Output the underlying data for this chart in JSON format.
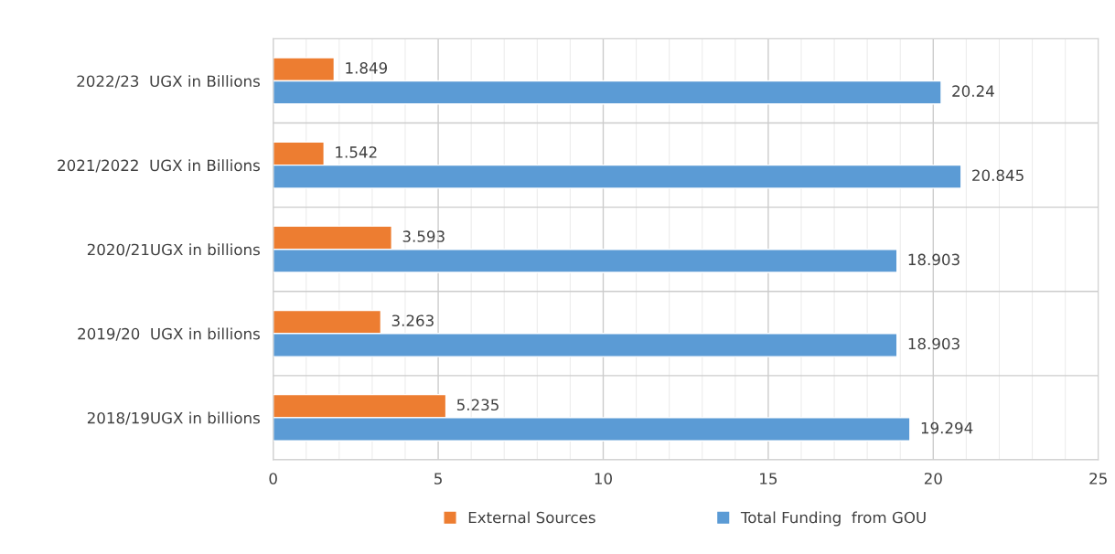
{
  "chart_data": {
    "type": "bar",
    "orientation": "horizontal",
    "categories": [
      "2022/23  UGX in Billions",
      "2021/2022  UGX in Billions",
      "2020/21UGX in billions",
      "2019/20  UGX in billions",
      "2018/19UGX in billions"
    ],
    "series": [
      {
        "name": "External Sources",
        "color": "#ed7d31",
        "values": [
          1.849,
          1.542,
          3.593,
          3.263,
          5.235
        ]
      },
      {
        "name": "Total Funding  from GOU",
        "color": "#5b9bd5",
        "values": [
          20.24,
          20.845,
          18.903,
          18.903,
          19.294
        ]
      }
    ],
    "xlim": [
      0,
      25
    ],
    "xticks": [
      0,
      5,
      10,
      15,
      20,
      25
    ],
    "grid": true,
    "legend": "bottom",
    "data_labels": true
  }
}
